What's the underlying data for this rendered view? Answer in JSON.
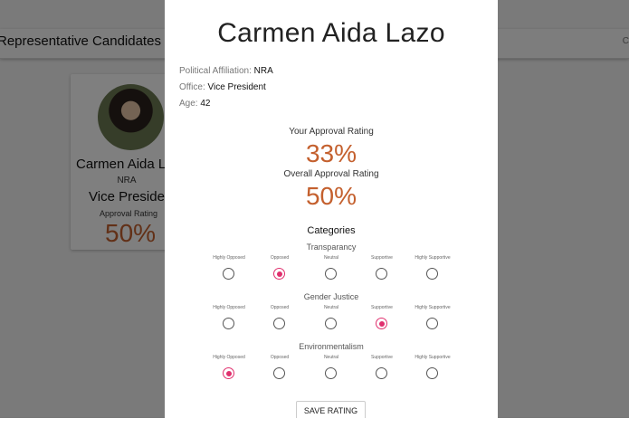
{
  "app": {
    "title": "Representative Candidates",
    "header_right": "C"
  },
  "background_card": {
    "name": "Carmen Aida L",
    "party": "NRA",
    "office": "Vice Presiden",
    "rating_label": "Approval Rating",
    "rating_value": "50%"
  },
  "modal": {
    "name": "Carmen Aida Lazo",
    "affiliation_label": "Political Affiliation: ",
    "affiliation_value": "NRA",
    "office_label": "Office: ",
    "office_value": "Vice President",
    "age_label": "Age: ",
    "age_value": "42",
    "your_rating_label": "Your Approval Rating",
    "your_rating_value": "33%",
    "overall_rating_label": "Overall Approval Rating",
    "overall_rating_value": "50%",
    "categories_heading": "Categories",
    "scale_labels": [
      "Highly Opposed",
      "Opposed",
      "Neutral",
      "Supportive",
      "Highly Supportive"
    ],
    "categories": [
      {
        "name": "Transparancy",
        "selected_index": 1
      },
      {
        "name": "Gender Justice",
        "selected_index": 3
      },
      {
        "name": "Environmentalism",
        "selected_index": 0
      }
    ],
    "save_label": "SAVE RATING"
  },
  "colors": {
    "accent": "#e0306e",
    "percent": "#c4602e"
  }
}
